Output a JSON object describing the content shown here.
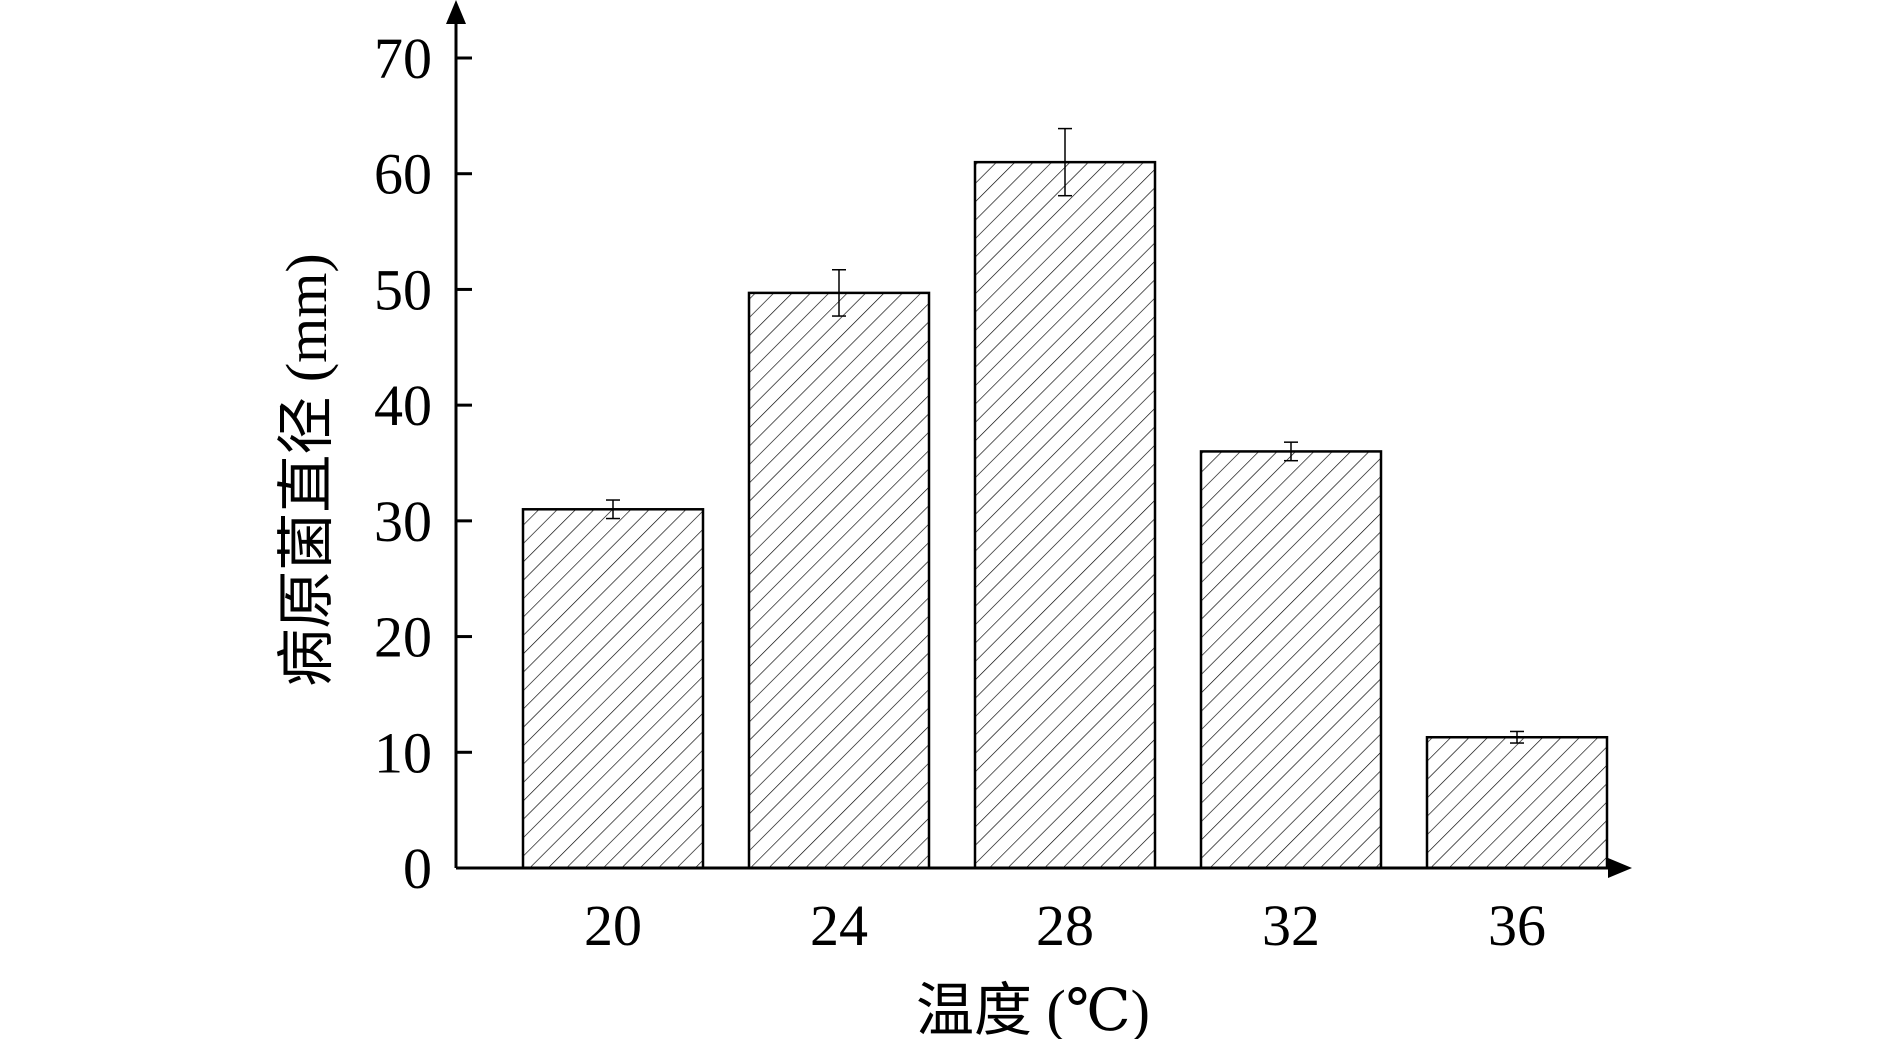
{
  "chart_data": {
    "type": "bar",
    "xlabel": "温度 (℃)",
    "ylabel": "病原菌直径 (mm)",
    "categories": [
      "20",
      "24",
      "28",
      "32",
      "36"
    ],
    "values": [
      31,
      49.7,
      61,
      36,
      11.3
    ],
    "errors": [
      0.8,
      2.0,
      2.9,
      0.8,
      0.5
    ],
    "ylim": [
      0,
      70
    ],
    "yticks": [
      0,
      10,
      20,
      30,
      40,
      50,
      60,
      70
    ],
    "grid": false,
    "bar_fill": "hatched",
    "bar_color": "#ffffff",
    "line_color": "#000000"
  }
}
